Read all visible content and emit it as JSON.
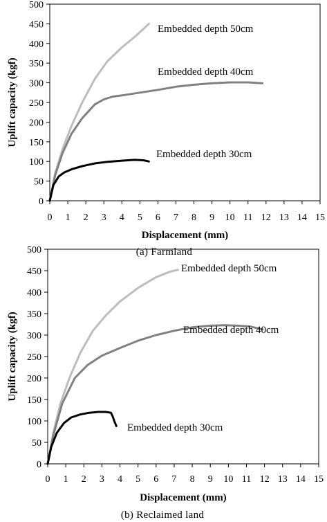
{
  "chart_data": [
    {
      "type": "line",
      "caption": "(a) Farmland",
      "xlabel": "Displacement (mm)",
      "ylabel": "Uplift capacity (kgf)",
      "xlim": [
        0,
        15
      ],
      "ylim": [
        0,
        500
      ],
      "x_ticks": [
        0,
        1,
        2,
        3,
        4,
        5,
        6,
        7,
        8,
        9,
        10,
        11,
        12,
        13,
        14,
        15
      ],
      "y_ticks": [
        0,
        50,
        100,
        150,
        200,
        250,
        300,
        350,
        400,
        450,
        500
      ],
      "grid": false,
      "series": [
        {
          "name": "Embedded depth 50cm",
          "color": "#bdbdbd",
          "x": [
            0,
            0.3,
            0.7,
            1.2,
            1.8,
            2.5,
            3.2,
            4.0,
            4.8,
            5.5
          ],
          "y": [
            0,
            70,
            130,
            190,
            250,
            310,
            355,
            390,
            420,
            450
          ]
        },
        {
          "name": "Embedded depth 40cm",
          "color": "#808080",
          "x": [
            0,
            0.3,
            0.7,
            1.2,
            1.8,
            2.5,
            3.0,
            3.5,
            4.0,
            5.0,
            6.0,
            7.0,
            8.0,
            9.0,
            10.0,
            11.0,
            11.8
          ],
          "y": [
            0,
            65,
            120,
            170,
            210,
            245,
            258,
            265,
            268,
            275,
            282,
            290,
            295,
            299,
            301,
            301,
            299
          ]
        },
        {
          "name": "Embedded depth 30cm",
          "color": "#000000",
          "x": [
            0,
            0.2,
            0.5,
            0.8,
            1.2,
            1.8,
            2.5,
            3.2,
            4.0,
            4.7,
            5.2,
            5.5
          ],
          "y": [
            0,
            40,
            62,
            72,
            80,
            88,
            95,
            99,
            102,
            104,
            103,
            100
          ]
        }
      ],
      "annotations": [
        "Embedded depth 50cm",
        "Embedded depth 40cm",
        "Embedded depth 30cm"
      ]
    },
    {
      "type": "line",
      "caption": "(b) Reclaimed land",
      "xlabel": "Displacement (mm)",
      "ylabel": "Uplift capacity (kgf)",
      "xlim": [
        0,
        15
      ],
      "ylim": [
        0,
        500
      ],
      "x_ticks": [
        0,
        1,
        2,
        3,
        4,
        5,
        6,
        7,
        8,
        9,
        10,
        11,
        12,
        13,
        14,
        15
      ],
      "y_ticks": [
        0,
        50,
        100,
        150,
        200,
        250,
        300,
        350,
        400,
        450,
        500
      ],
      "grid": false,
      "series": [
        {
          "name": "Embedded depth 50cm",
          "color": "#bdbdbd",
          "x": [
            0,
            0.3,
            0.7,
            1.2,
            1.8,
            2.5,
            3.2,
            4.0,
            5.0,
            6.0,
            6.8,
            7.2
          ],
          "y": [
            0,
            70,
            140,
            200,
            258,
            310,
            345,
            378,
            410,
            435,
            448,
            452
          ]
        },
        {
          "name": "Embedded depth 40cm",
          "color": "#808080",
          "x": [
            0,
            0.3,
            0.8,
            1.5,
            2.2,
            3.0,
            4.0,
            5.0,
            6.0,
            7.0,
            8.0,
            9.0,
            9.8,
            10.5,
            11.2,
            11.9
          ],
          "y": [
            0,
            65,
            140,
            200,
            230,
            252,
            270,
            287,
            300,
            310,
            318,
            322,
            323,
            322,
            320,
            313
          ]
        },
        {
          "name": "Embedded depth 30cm",
          "color": "#000000",
          "x": [
            0,
            0.2,
            0.5,
            0.9,
            1.3,
            1.8,
            2.3,
            2.8,
            3.2,
            3.5,
            3.6,
            3.7,
            3.8
          ],
          "y": [
            0,
            40,
            72,
            95,
            108,
            115,
            119,
            121,
            121,
            119,
            110,
            98,
            88
          ]
        }
      ],
      "annotations": [
        "Embedded depth 50cm",
        "Embedded depth 40cm",
        "Embedded depth 30cm"
      ]
    }
  ]
}
